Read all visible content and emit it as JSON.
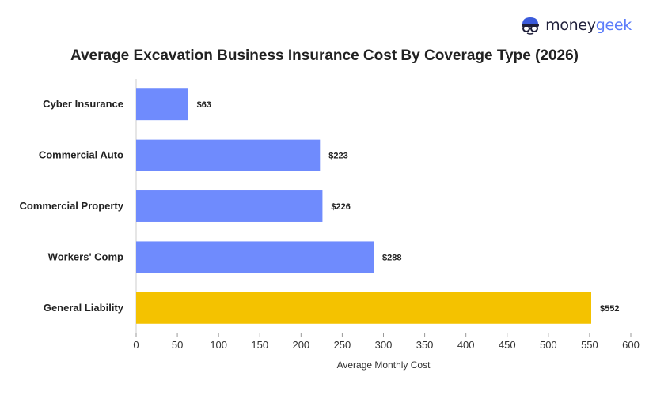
{
  "brand": {
    "name_part1": "money",
    "name_part2": "geek"
  },
  "colors": {
    "bar_default": "#6f8bfd",
    "bar_highlight": "#f4c200",
    "brand_blue": "#5b7cfa",
    "brand_dark": "#1f1f3a"
  },
  "chart_data": {
    "type": "bar",
    "orientation": "horizontal",
    "title": "Average Excavation Business Insurance Cost By Coverage Type (2026)",
    "xlabel": "Average Monthly Cost",
    "ylabel": "",
    "categories": [
      "Cyber Insurance",
      "Commercial Auto",
      "Commercial Property",
      "Workers' Comp",
      "General Liability"
    ],
    "values": [
      63,
      223,
      226,
      288,
      552
    ],
    "value_labels": [
      "$63",
      "$223",
      "$226",
      "$288",
      "$552"
    ],
    "highlight_category": "General Liability",
    "xlim": [
      0,
      600
    ],
    "xticks": [
      0,
      50,
      100,
      150,
      200,
      250,
      300,
      350,
      400,
      450,
      500,
      550,
      600
    ],
    "grid": false,
    "legend": "none"
  }
}
